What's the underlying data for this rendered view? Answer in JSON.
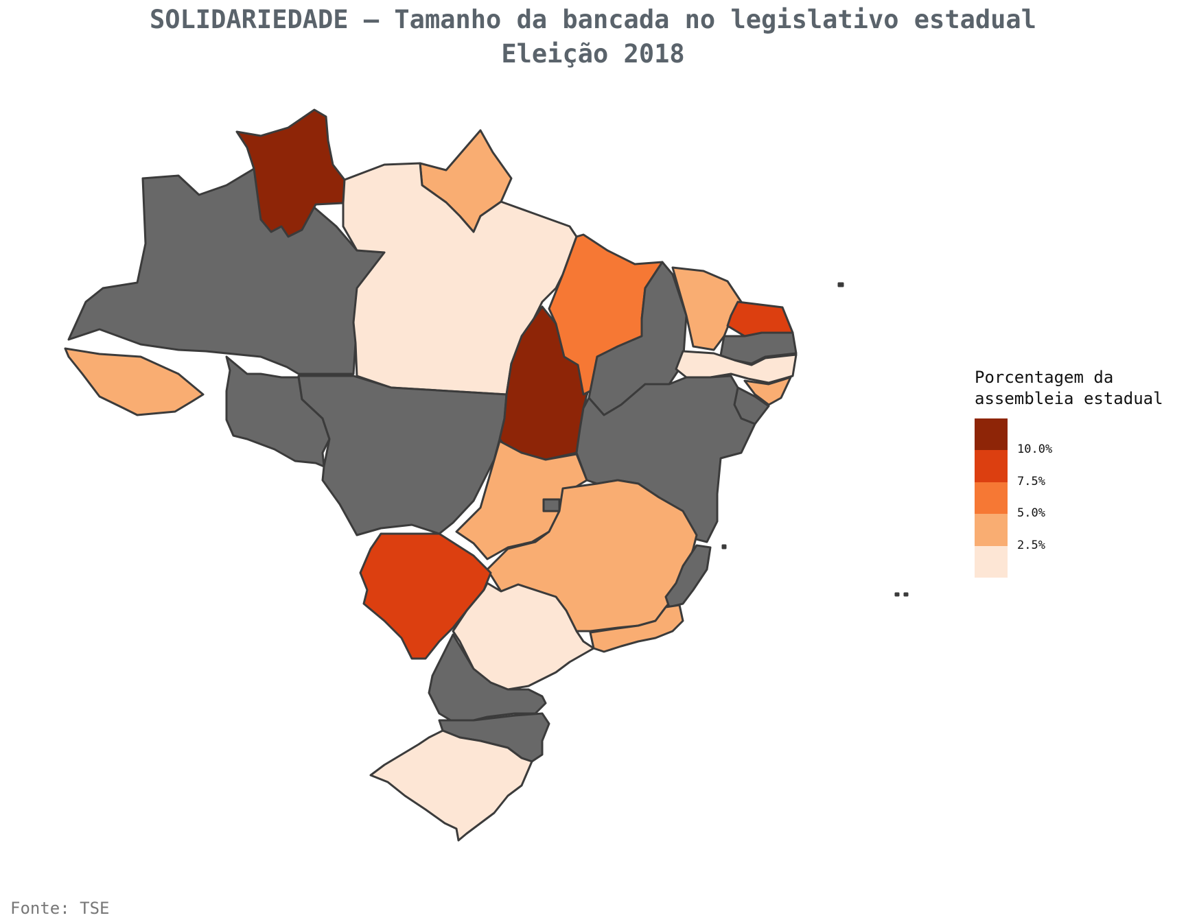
{
  "title": {
    "line1": "SOLIDARIEDADE – Tamanho da bancada no legislativo estadual",
    "line2": "Eleição 2018"
  },
  "colors": {
    "none": "#686868",
    "0-2.5": "#fde6d5",
    "2.5-5": "#f9ad72",
    "5-7.5": "#f67834",
    "7.5-10": "#dc3f10",
    "10+": "#8e2507",
    "border": "#3b3b3b"
  },
  "map": {
    "regions": [
      {
        "name": "AM",
        "class": "none"
      },
      {
        "name": "RR",
        "class": "10+"
      },
      {
        "name": "AP",
        "class": "2.5-5"
      },
      {
        "name": "PA",
        "class": "0-2.5"
      },
      {
        "name": "AC",
        "class": "2.5-5"
      },
      {
        "name": "RO",
        "class": "none"
      },
      {
        "name": "MT",
        "class": "none"
      },
      {
        "name": "TO",
        "class": "10+"
      },
      {
        "name": "MA",
        "class": "5-7.5"
      },
      {
        "name": "PI",
        "class": "none"
      },
      {
        "name": "CE",
        "class": "2.5-5"
      },
      {
        "name": "RN",
        "class": "7.5-10"
      },
      {
        "name": "PB",
        "class": "none"
      },
      {
        "name": "PE",
        "class": "0-2.5"
      },
      {
        "name": "AL",
        "class": "2.5-5"
      },
      {
        "name": "SE",
        "class": "none"
      },
      {
        "name": "BA",
        "class": "none"
      },
      {
        "name": "GO",
        "class": "2.5-5"
      },
      {
        "name": "DF",
        "class": "none"
      },
      {
        "name": "MG",
        "class": "2.5-5"
      },
      {
        "name": "ES",
        "class": "none"
      },
      {
        "name": "MS",
        "class": "7.5-10"
      },
      {
        "name": "SP",
        "class": "0-2.5"
      },
      {
        "name": "RJ",
        "class": "2.5-5"
      },
      {
        "name": "PR",
        "class": "none"
      },
      {
        "name": "SC",
        "class": "none"
      },
      {
        "name": "RS",
        "class": "0-2.5"
      }
    ]
  },
  "legend": {
    "title_line1": "Porcentagem da",
    "title_line2": "assembleia estadual",
    "ticks": [
      "10.0%",
      "7.5%",
      "5.0%",
      "2.5%"
    ]
  },
  "source": "Fonte: TSE"
}
